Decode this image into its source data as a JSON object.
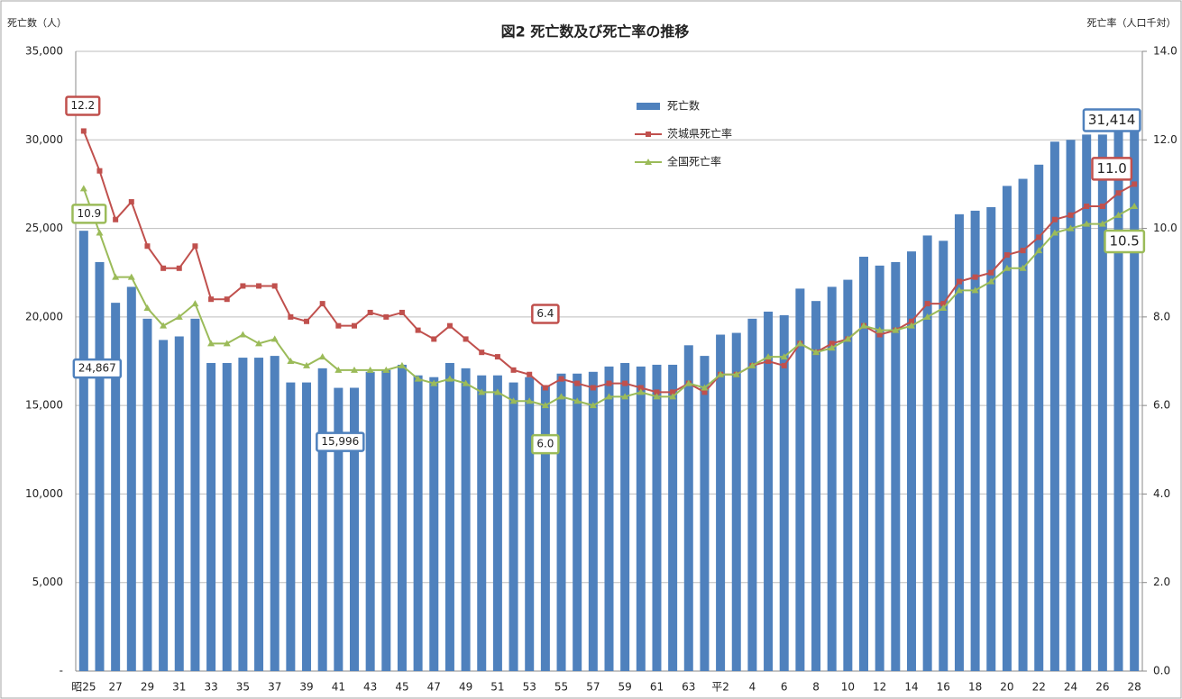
{
  "chart_data": {
    "type": "bar-line",
    "title": "図2 死亡数及び死亡率の推移",
    "y_label": "死亡数（人）",
    "y2_label": "死亡率（人口千対）",
    "categories": [
      "昭25",
      null,
      "27",
      null,
      "29",
      null,
      "31",
      null,
      "33",
      null,
      "35",
      null,
      "37",
      null,
      "39",
      null,
      "41",
      null,
      "43",
      null,
      "45",
      null,
      "47",
      null,
      "49",
      null,
      "51",
      null,
      "53",
      null,
      "55",
      null,
      "57",
      null,
      "59",
      null,
      "61",
      null,
      "63",
      null,
      "平2",
      null,
      "4",
      null,
      "6",
      null,
      "8",
      null,
      "10",
      null,
      "12",
      null,
      "14",
      null,
      "16",
      null,
      "18",
      null,
      "20",
      null,
      "22",
      null,
      "24",
      null,
      "26",
      null,
      "28"
    ],
    "ylim": [
      0,
      35000
    ],
    "yticks": [
      {
        "value": 0,
        "label": "-"
      },
      {
        "value": 5000,
        "label": "5,000"
      },
      {
        "value": 10000,
        "label": "10,000"
      },
      {
        "value": 15000,
        "label": "15,000"
      },
      {
        "value": 20000,
        "label": "20,000"
      },
      {
        "value": 25000,
        "label": "25,000"
      },
      {
        "value": 30000,
        "label": "30,000"
      },
      {
        "value": 35000,
        "label": "35,000"
      }
    ],
    "y2lim": [
      0,
      14
    ],
    "y2ticks": [
      {
        "value": 0,
        "label": "0.0"
      },
      {
        "value": 2,
        "label": "2.0"
      },
      {
        "value": 4,
        "label": "4.0"
      },
      {
        "value": 6,
        "label": "6.0"
      },
      {
        "value": 8,
        "label": "8.0"
      },
      {
        "value": 10,
        "label": "10.0"
      },
      {
        "value": 12,
        "label": "12.0"
      },
      {
        "value": 14,
        "label": "14.0"
      }
    ],
    "grid": true,
    "series": [
      {
        "name": "死亡数",
        "type": "bar",
        "color": "#4f81bd",
        "values": [
          24867,
          23100,
          20800,
          21700,
          19900,
          18700,
          18900,
          19900,
          17400,
          17400,
          17700,
          17700,
          17800,
          16300,
          16300,
          17100,
          15996,
          16000,
          16900,
          17000,
          17300,
          16700,
          16600,
          17400,
          17100,
          16700,
          16700,
          16300,
          16600,
          16100,
          16800,
          16800,
          16900,
          17200,
          17400,
          17200,
          17300,
          17300,
          18400,
          17800,
          19000,
          19100,
          19900,
          20300,
          20100,
          21600,
          20900,
          21700,
          22100,
          23400,
          22900,
          23100,
          23700,
          24600,
          24300,
          25800,
          26000,
          26200,
          27400,
          27800,
          28600,
          29900,
          30000,
          30300,
          30300,
          31000,
          31414
        ],
        "value_labels": [
          "24,867",
          null,
          null,
          null,
          null,
          null,
          null,
          null,
          null,
          null,
          null,
          null,
          null,
          null,
          null,
          null,
          "15,996",
          null,
          null,
          null,
          null,
          null,
          null,
          null,
          null,
          null,
          null,
          null,
          null,
          null,
          null,
          null,
          null,
          null,
          null,
          null,
          null,
          null,
          null,
          null,
          null,
          null,
          null,
          null,
          null,
          null,
          null,
          null,
          null,
          null,
          null,
          null,
          null,
          null,
          null,
          null,
          null,
          null,
          null,
          null,
          null,
          null,
          null,
          null,
          null,
          null,
          "31,414"
        ]
      },
      {
        "name": "茨城県死亡率",
        "type": "line",
        "axis": "y2",
        "color": "#c0504d",
        "marker": "square",
        "values": [
          12.2,
          11.3,
          10.2,
          10.6,
          9.6,
          9.1,
          9.1,
          9.6,
          8.4,
          8.4,
          8.7,
          8.7,
          8.7,
          8.0,
          7.9,
          8.3,
          7.8,
          7.8,
          8.1,
          8.0,
          8.1,
          7.7,
          7.5,
          7.8,
          7.5,
          7.2,
          7.1,
          6.8,
          6.7,
          6.4,
          6.6,
          6.5,
          6.4,
          6.5,
          6.5,
          6.4,
          6.3,
          6.3,
          6.5,
          6.3,
          6.7,
          6.7,
          6.9,
          7.0,
          6.9,
          7.4,
          7.2,
          7.4,
          7.5,
          7.8,
          7.6,
          7.7,
          7.9,
          8.3,
          8.3,
          8.8,
          8.9,
          9.0,
          9.4,
          9.5,
          9.8,
          10.2,
          10.3,
          10.5,
          10.5,
          10.8,
          11.0
        ],
        "value_labels": [
          "12.2",
          null,
          null,
          null,
          null,
          null,
          null,
          null,
          null,
          null,
          null,
          null,
          null,
          null,
          null,
          null,
          null,
          null,
          null,
          null,
          null,
          null,
          null,
          null,
          null,
          null,
          null,
          null,
          null,
          "6.4",
          null,
          null,
          null,
          null,
          null,
          null,
          null,
          null,
          null,
          null,
          null,
          null,
          null,
          null,
          null,
          null,
          null,
          null,
          null,
          null,
          null,
          null,
          null,
          null,
          null,
          null,
          null,
          null,
          null,
          null,
          null,
          null,
          null,
          null,
          null,
          null,
          "11.0"
        ]
      },
      {
        "name": "全国死亡率",
        "type": "line",
        "axis": "y2",
        "color": "#9bbb59",
        "marker": "triangle",
        "values": [
          10.9,
          9.9,
          8.9,
          8.9,
          8.2,
          7.8,
          8.0,
          8.3,
          7.4,
          7.4,
          7.6,
          7.4,
          7.5,
          7.0,
          6.9,
          7.1,
          6.8,
          6.8,
          6.8,
          6.8,
          6.9,
          6.6,
          6.5,
          6.6,
          6.5,
          6.3,
          6.3,
          6.1,
          6.1,
          6.0,
          6.2,
          6.1,
          6.0,
          6.2,
          6.2,
          6.3,
          6.2,
          6.2,
          6.5,
          6.4,
          6.7,
          6.7,
          6.9,
          7.1,
          7.1,
          7.4,
          7.2,
          7.3,
          7.5,
          7.8,
          7.7,
          7.7,
          7.8,
          8.0,
          8.2,
          8.6,
          8.6,
          8.8,
          9.1,
          9.1,
          9.5,
          9.9,
          10.0,
          10.1,
          10.1,
          10.3,
          10.5
        ],
        "value_labels": [
          "10.9",
          null,
          null,
          null,
          null,
          null,
          null,
          null,
          null,
          null,
          null,
          null,
          null,
          null,
          null,
          null,
          null,
          null,
          null,
          null,
          null,
          null,
          null,
          null,
          null,
          null,
          null,
          null,
          null,
          "6.0",
          null,
          null,
          null,
          null,
          null,
          null,
          null,
          null,
          null,
          null,
          null,
          null,
          null,
          null,
          null,
          null,
          null,
          null,
          null,
          null,
          null,
          null,
          null,
          null,
          null,
          null,
          null,
          null,
          null,
          null,
          null,
          null,
          null,
          null,
          null,
          null,
          "10.5"
        ]
      }
    ]
  }
}
